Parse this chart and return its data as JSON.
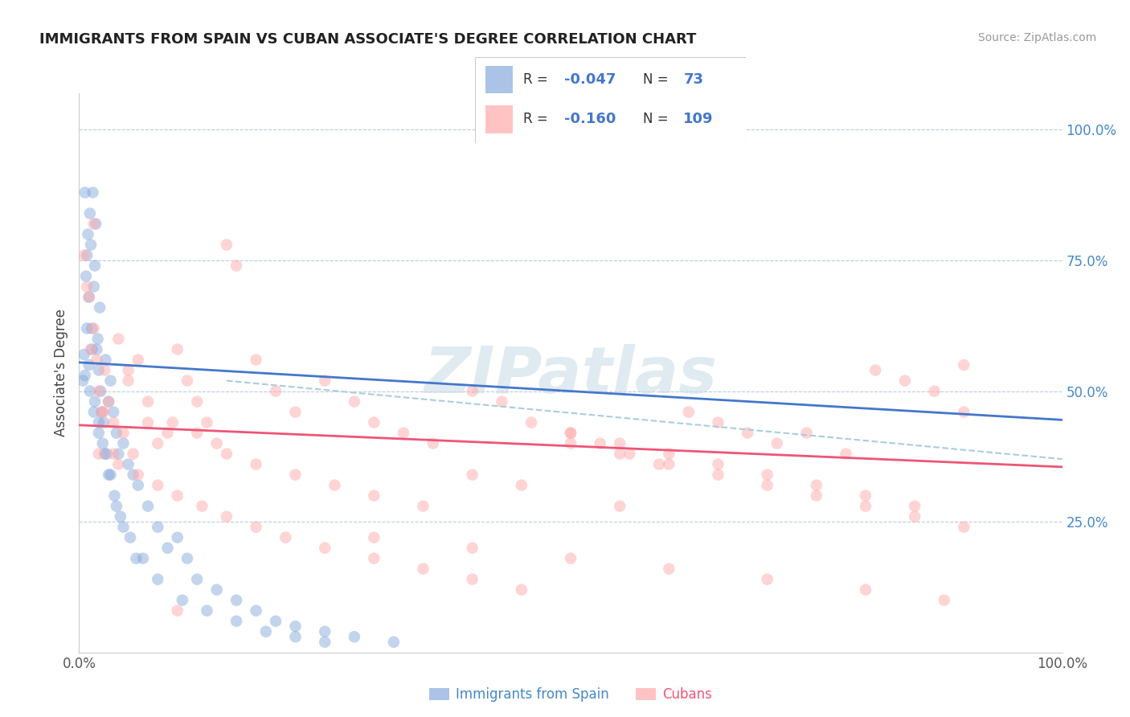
{
  "title": "IMMIGRANTS FROM SPAIN VS CUBAN ASSOCIATE'S DEGREE CORRELATION CHART",
  "source_text": "Source: ZipAtlas.com",
  "ylabel": "Associate's Degree",
  "legend_label_blue": "Immigrants from Spain",
  "legend_label_pink": "Cubans",
  "blue_color": "#88AADD",
  "pink_color": "#FFAAAA",
  "trendline_blue_color": "#4477CC",
  "trendline_pink_color": "#EE5577",
  "dashed_line_color": "#AACCDD",
  "grid_color": "#BBCCDD",
  "watermark_color": "#CCDDE8",
  "r_n_color": "#4477CC",
  "blue_trend_x0": 0,
  "blue_trend_y0": 55.5,
  "blue_trend_x1": 100,
  "blue_trend_y1": 44.5,
  "pink_trend_x0": 0,
  "pink_trend_y0": 43.5,
  "pink_trend_x1": 100,
  "pink_trend_y1": 35.5,
  "dashed_x0": 15,
  "dashed_y0": 52.0,
  "dashed_x1": 100,
  "dashed_y1": 37.0,
  "blue_x": [
    0.4,
    0.6,
    0.7,
    0.8,
    0.9,
    1.0,
    1.1,
    1.2,
    1.3,
    1.4,
    1.5,
    1.6,
    1.7,
    1.8,
    1.9,
    2.0,
    2.1,
    2.2,
    2.3,
    2.5,
    2.7,
    3.0,
    3.2,
    3.5,
    3.8,
    4.0,
    4.5,
    5.0,
    5.5,
    6.0,
    7.0,
    8.0,
    9.0,
    10.0,
    11.0,
    12.0,
    14.0,
    16.0,
    18.0,
    20.0,
    22.0,
    25.0,
    28.0,
    32.0,
    0.5,
    0.8,
    1.0,
    1.3,
    1.6,
    2.0,
    2.4,
    2.8,
    3.2,
    3.6,
    4.2,
    5.2,
    6.5,
    8.0,
    10.5,
    13.0,
    16.0,
    19.0,
    22.0,
    25.0,
    0.6,
    1.1,
    1.5,
    2.0,
    2.6,
    3.0,
    3.8,
    4.5,
    5.8
  ],
  "blue_y": [
    52.0,
    88.0,
    72.0,
    76.0,
    80.0,
    68.0,
    84.0,
    78.0,
    62.0,
    88.0,
    70.0,
    74.0,
    82.0,
    58.0,
    60.0,
    54.0,
    66.0,
    50.0,
    46.0,
    44.0,
    56.0,
    48.0,
    52.0,
    46.0,
    42.0,
    38.0,
    40.0,
    36.0,
    34.0,
    32.0,
    28.0,
    24.0,
    20.0,
    22.0,
    18.0,
    14.0,
    12.0,
    10.0,
    8.0,
    6.0,
    5.0,
    4.0,
    3.0,
    2.0,
    57.0,
    62.0,
    55.0,
    58.0,
    48.0,
    44.0,
    40.0,
    38.0,
    34.0,
    30.0,
    26.0,
    22.0,
    18.0,
    14.0,
    10.0,
    8.0,
    6.0,
    4.0,
    3.0,
    2.0,
    53.0,
    50.0,
    46.0,
    42.0,
    38.0,
    34.0,
    28.0,
    24.0,
    18.0
  ],
  "pink_x": [
    0.5,
    0.8,
    1.0,
    1.2,
    1.5,
    1.8,
    2.0,
    2.3,
    2.6,
    3.0,
    3.5,
    4.0,
    4.5,
    5.0,
    5.5,
    6.0,
    7.0,
    8.0,
    9.0,
    10.0,
    11.0,
    12.0,
    13.0,
    14.0,
    15.0,
    16.0,
    18.0,
    20.0,
    22.0,
    25.0,
    28.0,
    30.0,
    33.0,
    36.0,
    40.0,
    43.0,
    46.0,
    50.0,
    53.0,
    56.0,
    59.0,
    62.0,
    65.0,
    68.0,
    71.0,
    74.0,
    78.0,
    81.0,
    84.0,
    87.0,
    90.0,
    1.5,
    2.5,
    3.5,
    5.0,
    7.0,
    9.5,
    12.0,
    15.0,
    18.0,
    22.0,
    26.0,
    30.0,
    35.0,
    40.0,
    45.0,
    50.0,
    55.0,
    60.0,
    65.0,
    70.0,
    75.0,
    80.0,
    85.0,
    2.0,
    4.0,
    6.0,
    8.0,
    10.0,
    12.5,
    15.0,
    18.0,
    21.0,
    25.0,
    30.0,
    35.0,
    40.0,
    45.0,
    50.0,
    55.0,
    60.0,
    65.0,
    70.0,
    75.0,
    80.0,
    85.0,
    90.0,
    30.0,
    40.0,
    50.0,
    60.0,
    70.0,
    80.0,
    88.0,
    90.0,
    55.0,
    10.0
  ],
  "pink_y": [
    76.0,
    70.0,
    68.0,
    58.0,
    82.0,
    56.0,
    50.0,
    46.0,
    54.0,
    48.0,
    44.0,
    60.0,
    42.0,
    52.0,
    38.0,
    56.0,
    44.0,
    40.0,
    42.0,
    58.0,
    52.0,
    48.0,
    44.0,
    40.0,
    78.0,
    74.0,
    56.0,
    50.0,
    46.0,
    52.0,
    48.0,
    44.0,
    42.0,
    40.0,
    50.0,
    48.0,
    44.0,
    42.0,
    40.0,
    38.0,
    36.0,
    46.0,
    44.0,
    42.0,
    40.0,
    42.0,
    38.0,
    54.0,
    52.0,
    50.0,
    46.0,
    62.0,
    46.0,
    38.0,
    54.0,
    48.0,
    44.0,
    42.0,
    38.0,
    36.0,
    34.0,
    32.0,
    30.0,
    28.0,
    34.0,
    32.0,
    42.0,
    40.0,
    38.0,
    36.0,
    34.0,
    32.0,
    30.0,
    28.0,
    38.0,
    36.0,
    34.0,
    32.0,
    30.0,
    28.0,
    26.0,
    24.0,
    22.0,
    20.0,
    18.0,
    16.0,
    14.0,
    12.0,
    40.0,
    38.0,
    36.0,
    34.0,
    32.0,
    30.0,
    28.0,
    26.0,
    24.0,
    22.0,
    20.0,
    18.0,
    16.0,
    14.0,
    12.0,
    10.0,
    55.0,
    28.0,
    8.0
  ],
  "ylim": [
    0,
    107
  ],
  "xlim": [
    0,
    100
  ],
  "yticks": [
    0,
    25,
    50,
    75,
    100
  ],
  "xticks": [
    0,
    100
  ]
}
